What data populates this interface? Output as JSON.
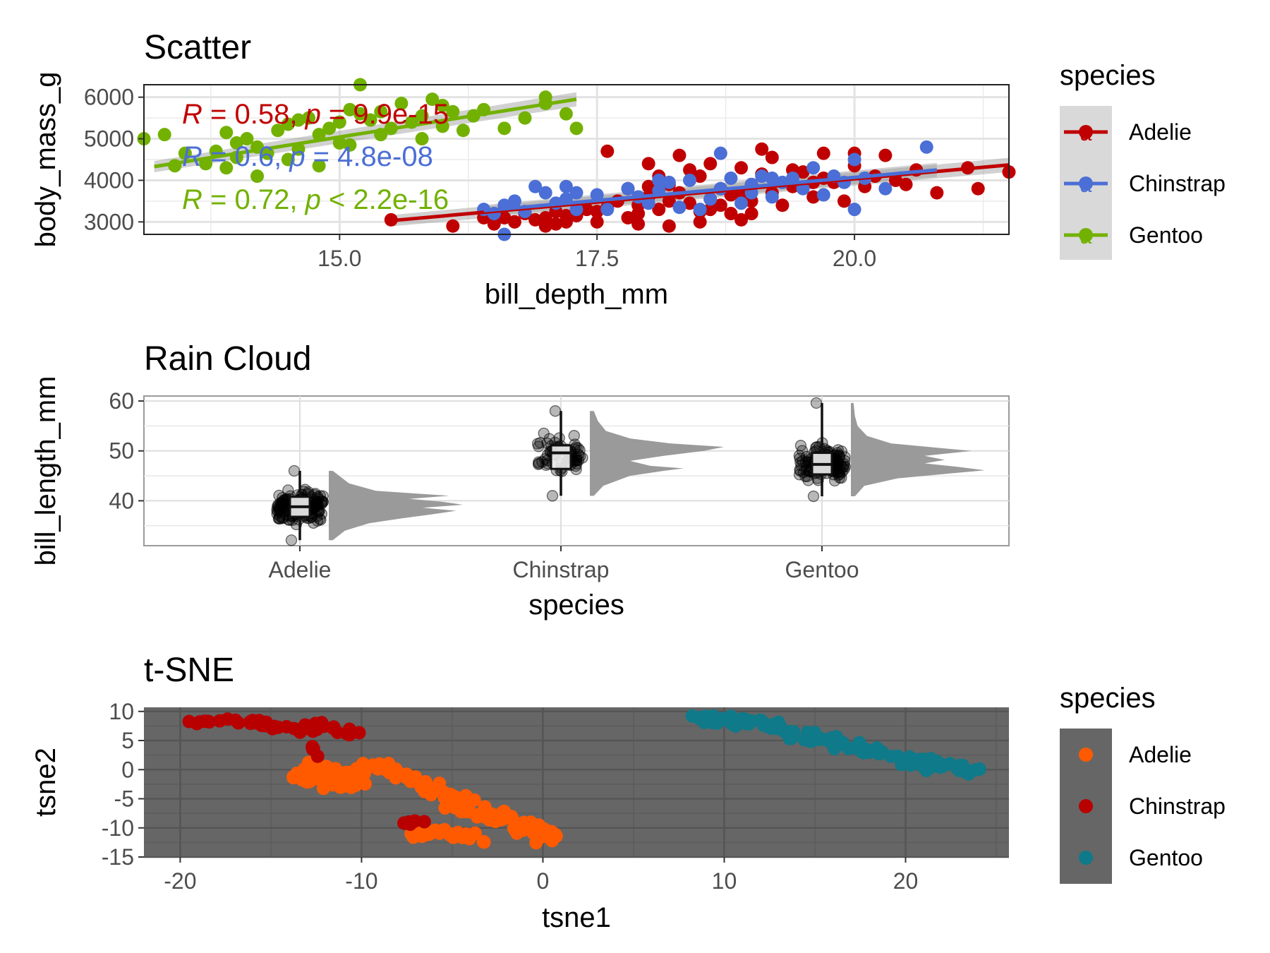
{
  "colors": {
    "adelie": "#C00000",
    "chinstrap": "#4B6FD6",
    "gentoo": "#72B100",
    "tsne_adelie": "#FF5A00",
    "tsne_chinstrap": "#B80000",
    "tsne_gentoo": "#0F7A8A",
    "dark_panel": "#666666",
    "legend_key_light": "#D9D9D9",
    "rain_points": "#000000",
    "density_fill": "#9A9A9A"
  },
  "chart_data": [
    {
      "type": "scatter",
      "title": "Scatter",
      "xlabel": "bill_depth_mm",
      "ylabel": "body_mass_g",
      "xlim": [
        13.1,
        21.5
      ],
      "ylim": [
        2700,
        6300
      ],
      "xticks": [
        "15.0",
        "17.5",
        "20.0"
      ],
      "yticks": [
        "3000",
        "4000",
        "5000",
        "6000"
      ],
      "grid": true,
      "legend": {
        "title": "species",
        "position": "right",
        "entries": [
          "Adelie",
          "Chinstrap",
          "Gentoo"
        ],
        "key_glyph": "a"
      },
      "annotations": [
        {
          "series": "Adelie",
          "r_label": "R",
          "r_text": " = 0.58, ",
          "p_label": "p",
          "p_text": " = 9.9e-15"
        },
        {
          "series": "Chinstrap",
          "r_label": "R",
          "r_text": " = 0.6, ",
          "p_label": "p",
          "p_text": " = 4.8e-08"
        },
        {
          "series": "Gentoo",
          "r_label": "R",
          "r_text": " = 0.72, ",
          "p_label": "p",
          "p_text": " < 2.2e-16"
        }
      ],
      "series": [
        {
          "name": "Adelie",
          "fit": {
            "x": [
              15.5,
              21.5
            ],
            "y": [
              3030,
              4370
            ]
          },
          "points": [
            [
              15.5,
              3050
            ],
            [
              16.1,
              2900
            ],
            [
              16.6,
              3100
            ],
            [
              16.7,
              3000
            ],
            [
              16.8,
              3200
            ],
            [
              16.9,
              3050
            ],
            [
              17.0,
              3100
            ],
            [
              17.1,
              2950
            ],
            [
              17.1,
              3250
            ],
            [
              17.2,
              3000
            ],
            [
              17.3,
              3150
            ],
            [
              17.4,
              3300
            ],
            [
              17.5,
              3250
            ],
            [
              17.6,
              3350
            ],
            [
              17.7,
              3500
            ],
            [
              17.8,
              3800
            ],
            [
              17.8,
              3100
            ],
            [
              17.9,
              3200
            ],
            [
              17.9,
              3400
            ],
            [
              18.0,
              3600
            ],
            [
              18.0,
              3850
            ],
            [
              18.1,
              3300
            ],
            [
              18.1,
              4100
            ],
            [
              18.2,
              3500
            ],
            [
              18.2,
              3900
            ],
            [
              18.2,
              2900
            ],
            [
              18.3,
              3700
            ],
            [
              18.4,
              3450
            ],
            [
              18.4,
              4250
            ],
            [
              18.5,
              3250
            ],
            [
              18.5,
              4100
            ],
            [
              18.6,
              3550
            ],
            [
              18.6,
              4400
            ],
            [
              18.7,
              3400
            ],
            [
              18.7,
              3800
            ],
            [
              18.8,
              3200
            ],
            [
              18.8,
              3650
            ],
            [
              18.9,
              4300
            ],
            [
              18.9,
              3050
            ],
            [
              19.0,
              3500
            ],
            [
              19.0,
              3900
            ],
            [
              19.1,
              4150
            ],
            [
              19.2,
              3700
            ],
            [
              19.2,
              4550
            ],
            [
              19.3,
              3400
            ],
            [
              19.4,
              3850
            ],
            [
              19.5,
              4200
            ],
            [
              19.6,
              3600
            ],
            [
              19.7,
              4050
            ],
            [
              19.7,
              4650
            ],
            [
              19.8,
              3950
            ],
            [
              19.9,
              3500
            ],
            [
              20.0,
              4350
            ],
            [
              20.1,
              3850
            ],
            [
              20.2,
              4100
            ],
            [
              20.3,
              4600
            ],
            [
              20.5,
              3900
            ],
            [
              20.6,
              4250
            ],
            [
              20.8,
              3700
            ],
            [
              21.1,
              4300
            ],
            [
              21.2,
              3800
            ],
            [
              21.5,
              4200
            ],
            [
              17.5,
              3000
            ],
            [
              17.6,
              4700
            ],
            [
              18.0,
              4400
            ],
            [
              18.3,
              4600
            ],
            [
              18.6,
              3300
            ],
            [
              19.1,
              4750
            ],
            [
              19.4,
              4250
            ],
            [
              20.0,
              4650
            ],
            [
              17.2,
              3150
            ],
            [
              16.5,
              2950
            ],
            [
              17.9,
              2950
            ],
            [
              18.5,
              3000
            ],
            [
              19.0,
              3200
            ],
            [
              17.0,
              2900
            ],
            [
              16.4,
              3100
            ],
            [
              18.9,
              3650
            ],
            [
              19.6,
              3950
            ],
            [
              20.4,
              4000
            ]
          ]
        },
        {
          "name": "Chinstrap",
          "fit": {
            "x": [
              16.4,
              20.8
            ],
            "y": [
              3270,
              4250
            ]
          },
          "points": [
            [
              16.4,
              3300
            ],
            [
              16.5,
              3200
            ],
            [
              16.6,
              2700
            ],
            [
              16.6,
              3400
            ],
            [
              16.7,
              3500
            ],
            [
              16.9,
              3850
            ],
            [
              17.0,
              3700
            ],
            [
              17.1,
              3450
            ],
            [
              17.2,
              3550
            ],
            [
              17.3,
              3300
            ],
            [
              17.3,
              3700
            ],
            [
              17.5,
              3650
            ],
            [
              17.6,
              3300
            ],
            [
              17.8,
              3800
            ],
            [
              17.9,
              3600
            ],
            [
              18.0,
              3450
            ],
            [
              18.1,
              3750
            ],
            [
              18.2,
              3950
            ],
            [
              18.3,
              3350
            ],
            [
              18.4,
              4000
            ],
            [
              18.5,
              3300
            ],
            [
              18.6,
              3550
            ],
            [
              18.7,
              3800
            ],
            [
              18.8,
              4050
            ],
            [
              18.9,
              3450
            ],
            [
              19.0,
              3900
            ],
            [
              19.0,
              3700
            ],
            [
              19.1,
              4100
            ],
            [
              19.2,
              3600
            ],
            [
              19.3,
              3950
            ],
            [
              19.4,
              4050
            ],
            [
              19.5,
              3800
            ],
            [
              19.6,
              4300
            ],
            [
              19.7,
              3650
            ],
            [
              19.8,
              4100
            ],
            [
              19.9,
              3950
            ],
            [
              20.0,
              4500
            ],
            [
              20.0,
              3300
            ],
            [
              20.1,
              4050
            ],
            [
              20.3,
              3800
            ],
            [
              20.7,
              4800
            ],
            [
              18.7,
              4650
            ],
            [
              17.2,
              3850
            ],
            [
              16.8,
              3250
            ],
            [
              18.1,
              4000
            ],
            [
              19.2,
              4050
            ]
          ]
        },
        {
          "name": "Gentoo",
          "fit": {
            "x": [
              13.2,
              17.3
            ],
            "y": [
              4330,
              5950
            ]
          },
          "points": [
            [
              13.1,
              5000
            ],
            [
              13.3,
              5100
            ],
            [
              13.5,
              4650
            ],
            [
              13.7,
              4400
            ],
            [
              13.8,
              4700
            ],
            [
              13.9,
              4300
            ],
            [
              14.0,
              4550
            ],
            [
              14.1,
              5000
            ],
            [
              14.2,
              4800
            ],
            [
              14.3,
              4650
            ],
            [
              14.4,
              5200
            ],
            [
              14.5,
              4500
            ],
            [
              14.5,
              5350
            ],
            [
              14.6,
              4750
            ],
            [
              14.7,
              5500
            ],
            [
              14.8,
              5100
            ],
            [
              14.9,
              5250
            ],
            [
              15.0,
              5400
            ],
            [
              15.1,
              4850
            ],
            [
              15.1,
              5700
            ],
            [
              15.2,
              5600
            ],
            [
              15.3,
              5450
            ],
            [
              15.4,
              5100
            ],
            [
              15.5,
              5250
            ],
            [
              15.6,
              5850
            ],
            [
              15.7,
              5400
            ],
            [
              15.8,
              5550
            ],
            [
              15.9,
              5950
            ],
            [
              16.0,
              5300
            ],
            [
              16.1,
              5650
            ],
            [
              16.2,
              5200
            ],
            [
              16.4,
              5700
            ],
            [
              16.6,
              5250
            ],
            [
              16.8,
              5500
            ],
            [
              17.0,
              5850
            ],
            [
              17.2,
              5600
            ],
            [
              17.3,
              5250
            ],
            [
              15.2,
              6300
            ],
            [
              14.2,
              4100
            ],
            [
              13.4,
              4350
            ],
            [
              14.8,
              4350
            ],
            [
              15.8,
              5000
            ],
            [
              16.0,
              5800
            ],
            [
              14.0,
              4900
            ],
            [
              13.9,
              5150
            ],
            [
              14.6,
              5450
            ],
            [
              15.0,
              4900
            ],
            [
              17.0,
              6000
            ],
            [
              16.3,
              5550
            ],
            [
              15.4,
              5650
            ]
          ]
        }
      ]
    },
    {
      "type": "raincloud",
      "title": "Rain Cloud",
      "xlabel": "species",
      "ylabel": "bill_length_mm",
      "categories": [
        "Adelie",
        "Chinstrap",
        "Gentoo"
      ],
      "ylim": [
        31,
        61
      ],
      "yticks": [
        "40",
        "50",
        "60"
      ],
      "grid": true,
      "boxplots": [
        {
          "category": "Adelie",
          "min": 32.1,
          "q1": 36.8,
          "median": 38.8,
          "q3": 40.8,
          "max": 46.0
        },
        {
          "category": "Chinstrap",
          "min": 41.0,
          "q1": 46.4,
          "median": 49.6,
          "q3": 51.1,
          "max": 58.0
        },
        {
          "category": "Gentoo",
          "min": 40.9,
          "q1": 45.3,
          "median": 47.3,
          "q3": 49.6,
          "max": 59.6
        }
      ],
      "densities": [
        {
          "category": "Adelie",
          "y": [
            32.1,
            34,
            35.5,
            36.5,
            37.2,
            38,
            38.6,
            39.2,
            39.8,
            40.4,
            41,
            42,
            43.5,
            46
          ],
          "d": [
            0.03,
            0.12,
            0.3,
            0.55,
            0.75,
            0.95,
            0.7,
            1.0,
            0.85,
            0.6,
            0.9,
            0.35,
            0.15,
            0.03
          ]
        },
        {
          "category": "Chinstrap",
          "y": [
            41,
            43,
            45,
            46,
            46.5,
            47,
            48,
            49,
            50,
            50.8,
            51.5,
            52.5,
            54,
            56,
            58
          ],
          "d": [
            0.03,
            0.1,
            0.3,
            0.55,
            0.7,
            0.45,
            0.3,
            0.55,
            0.85,
            1.0,
            0.6,
            0.3,
            0.12,
            0.06,
            0.03
          ]
        },
        {
          "category": "Gentoo",
          "y": [
            40.9,
            43,
            44.5,
            45.5,
            46.1,
            46.8,
            47.5,
            48.2,
            49,
            50,
            50.5,
            51.5,
            53,
            55,
            57,
            59.6
          ],
          "d": [
            0.03,
            0.1,
            0.35,
            0.75,
            1.0,
            0.8,
            0.55,
            0.7,
            0.55,
            0.9,
            0.7,
            0.3,
            0.12,
            0.05,
            0.03,
            0.02
          ]
        }
      ]
    },
    {
      "type": "scatter",
      "title": "t-SNE",
      "xlabel": "tsne1",
      "ylabel": "tsne2",
      "xlim": [
        -22,
        25.7
      ],
      "ylim": [
        -15,
        10.7
      ],
      "xticks": [
        "-20",
        "-10",
        "0",
        "10",
        "20"
      ],
      "yticks": [
        "-15",
        "-10",
        "-5",
        "0",
        "5",
        "10"
      ],
      "grid": true,
      "legend": {
        "title": "species",
        "position": "right",
        "entries": [
          "Adelie",
          "Chinstrap",
          "Gentoo"
        ]
      },
      "series": [
        {
          "name": "Adelie",
          "cluster": "orange"
        },
        {
          "name": "Chinstrap",
          "cluster": "darkred"
        },
        {
          "name": "Gentoo",
          "cluster": "teal"
        }
      ]
    }
  ]
}
